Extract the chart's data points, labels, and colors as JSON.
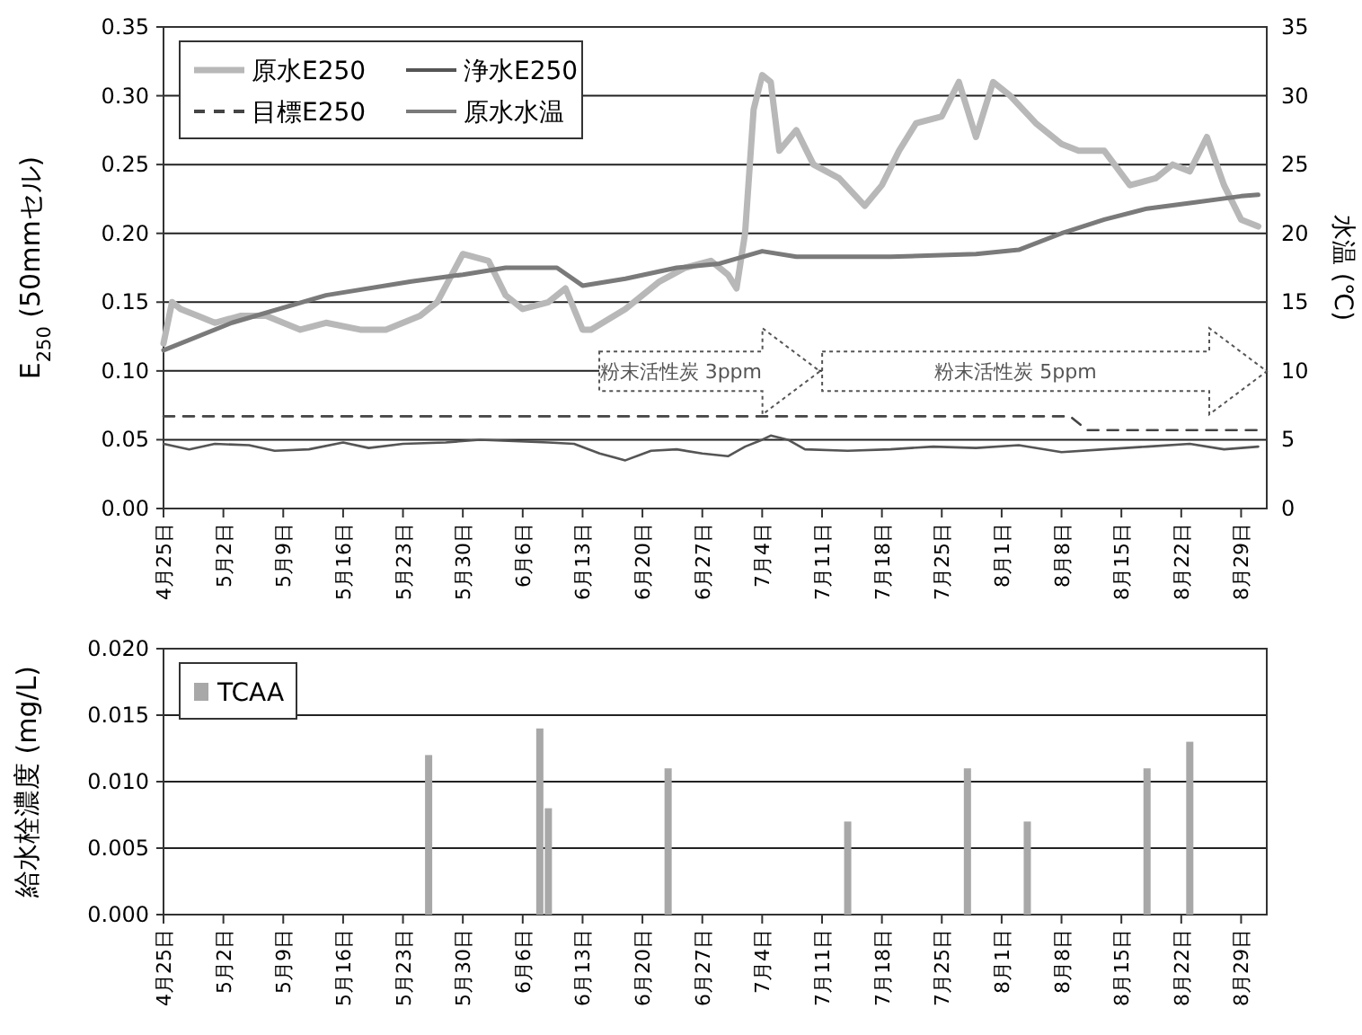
{
  "chart_data": [
    {
      "type": "line",
      "ylabel": "E$_{250}$ (50mmセル)",
      "y2label": "水温 (℃)",
      "xlim": [
        "--04-25",
        "--09-01"
      ],
      "xticks": [
        {
          "value": "--04-25",
          "label": "4月25日"
        },
        {
          "value": "--05-02",
          "label": "5月2日"
        },
        {
          "value": "--05-09",
          "label": "5月9日"
        },
        {
          "value": "--05-16",
          "label": "5月16日"
        },
        {
          "value": "--05-23",
          "label": "5月23日"
        },
        {
          "value": "--05-30",
          "label": "5月30日"
        },
        {
          "value": "--06-06",
          "label": "6月6日"
        },
        {
          "value": "--06-13",
          "label": "6月13日"
        },
        {
          "value": "--06-20",
          "label": "6月20日"
        },
        {
          "value": "--06-27",
          "label": "6月27日"
        },
        {
          "value": "--07-04",
          "label": "7月4日"
        },
        {
          "value": "--07-11",
          "label": "7月11日"
        },
        {
          "value": "--07-18",
          "label": "7月18日"
        },
        {
          "value": "--07-25",
          "label": "7月25日"
        },
        {
          "value": "--08-01",
          "label": "8月1日"
        },
        {
          "value": "--08-08",
          "label": "8月8日"
        },
        {
          "value": "--08-15",
          "label": "8月15日"
        },
        {
          "value": "--08-22",
          "label": "8月22日"
        },
        {
          "value": "--08-29",
          "label": "8月29日"
        }
      ],
      "ylim": [
        0,
        0.35
      ],
      "yticks": [
        {
          "value": 0,
          "label": "0.00"
        },
        {
          "value": 0.05,
          "label": "0.05"
        },
        {
          "value": 0.1,
          "label": "0.10"
        },
        {
          "value": 0.15,
          "label": "0.15"
        },
        {
          "value": 0.2,
          "label": "0.20"
        },
        {
          "value": 0.25,
          "label": "0.25"
        },
        {
          "value": 0.3,
          "label": "0.30"
        },
        {
          "value": 0.35,
          "label": "0.35"
        }
      ],
      "y2lim": [
        0,
        35
      ],
      "y2ticks": [
        0,
        5,
        10,
        15,
        20,
        25,
        30,
        35
      ],
      "grid": "y",
      "legend": "top left",
      "annotations": [
        "粉末活性炭 3ppm",
        "粉末活性炭 5ppm"
      ],
      "series": [
        {
          "name": "原水E250",
          "color": "#b8b8b8",
          "x": [
            "--04-25",
            "--04-26",
            "--04-27",
            "--04-29",
            "--05-01",
            "--05-04",
            "--05-07",
            "--05-11",
            "--05-14",
            "--05-18",
            "--05-21",
            "--05-25",
            "--05-27",
            "--05-30",
            "--06-02",
            "--06-04",
            "--06-06",
            "--06-09",
            "--06-11",
            "--06-13",
            "--06-14",
            "--06-18",
            "--06-22",
            "--06-25",
            "--06-28",
            "--06-30",
            "--07-01",
            "--07-02",
            "--07-03",
            "--07-04",
            "--07-05",
            "--07-06",
            "--07-08",
            "--07-10",
            "--07-13",
            "--07-16",
            "--07-18",
            "--07-20",
            "--07-22",
            "--07-25",
            "--07-27",
            "--07-29",
            "--07-31",
            "--08-02",
            "--08-05",
            "--08-08",
            "--08-10",
            "--08-13",
            "--08-16",
            "--08-19",
            "--08-21",
            "--08-23",
            "--08-25",
            "--08-27",
            "--08-29",
            "--08-31"
          ],
          "values": [
            0.12,
            0.15,
            0.145,
            0.14,
            0.135,
            0.14,
            0.14,
            0.13,
            0.135,
            0.13,
            0.13,
            0.14,
            0.15,
            0.185,
            0.18,
            0.155,
            0.145,
            0.15,
            0.16,
            0.13,
            0.13,
            0.145,
            0.165,
            0.175,
            0.18,
            0.17,
            0.16,
            0.2,
            0.29,
            0.315,
            0.31,
            0.26,
            0.275,
            0.25,
            0.24,
            0.22,
            0.235,
            0.26,
            0.28,
            0.285,
            0.31,
            0.27,
            0.31,
            0.3,
            0.28,
            0.265,
            0.26,
            0.26,
            0.235,
            0.24,
            0.25,
            0.245,
            0.27,
            0.235,
            0.21,
            0.205
          ]
        },
        {
          "name": "浄水E250",
          "color": "#555555",
          "x": [
            "--04-25",
            "--04-28",
            "--05-01",
            "--05-05",
            "--05-08",
            "--05-12",
            "--05-16",
            "--05-19",
            "--05-23",
            "--05-28",
            "--06-01",
            "--06-05",
            "--06-09",
            "--06-12",
            "--06-15",
            "--06-18",
            "--06-21",
            "--06-24",
            "--06-27",
            "--06-30",
            "--07-02",
            "--07-04",
            "--07-05",
            "--07-07",
            "--07-09",
            "--07-14",
            "--07-19",
            "--07-24",
            "--07-29",
            "--08-03",
            "--08-08",
            "--08-13",
            "--08-18",
            "--08-23",
            "--08-27",
            "--08-31"
          ],
          "values": [
            0.047,
            0.043,
            0.047,
            0.046,
            0.042,
            0.043,
            0.048,
            0.044,
            0.047,
            0.048,
            0.05,
            0.049,
            0.048,
            0.047,
            0.04,
            0.035,
            0.042,
            0.043,
            0.04,
            0.038,
            0.045,
            0.05,
            0.053,
            0.05,
            0.043,
            0.042,
            0.043,
            0.045,
            0.044,
            0.046,
            0.041,
            0.043,
            0.045,
            0.047,
            0.043,
            0.045
          ]
        },
        {
          "name": "目標E250",
          "color": "#444444",
          "line_style": "dashed",
          "x": [
            "--04-25",
            "--08-09",
            "--08-11",
            "--08-31"
          ],
          "values": [
            0.067,
            0.067,
            0.057,
            0.057
          ]
        },
        {
          "name": "原水水温",
          "color": "#7a7a7a",
          "axis": "y2",
          "x": [
            "--04-25",
            "--05-03",
            "--05-14",
            "--05-24",
            "--05-30",
            "--06-04",
            "--06-10",
            "--06-13",
            "--06-18",
            "--06-24",
            "--06-29",
            "--07-04",
            "--07-08",
            "--07-19",
            "--07-29",
            "--08-03",
            "--08-08",
            "--08-13",
            "--08-18",
            "--08-23",
            "--08-29",
            "--08-31"
          ],
          "values": [
            11.5,
            13.5,
            15.5,
            16.5,
            17,
            17.5,
            17.5,
            16.2,
            16.7,
            17.5,
            17.8,
            18.7,
            18.3,
            18.3,
            18.5,
            18.8,
            20,
            21,
            21.8,
            22.2,
            22.7,
            22.8
          ]
        }
      ]
    },
    {
      "type": "bar",
      "ylabel": "給水栓濃度 (mg/L)",
      "xlim": [
        "--04-25",
        "--09-01"
      ],
      "xticks": [
        {
          "value": "--04-25",
          "label": "4月25日"
        },
        {
          "value": "--05-02",
          "label": "5月2日"
        },
        {
          "value": "--05-09",
          "label": "5月9日"
        },
        {
          "value": "--05-16",
          "label": "5月16日"
        },
        {
          "value": "--05-23",
          "label": "5月23日"
        },
        {
          "value": "--05-30",
          "label": "5月30日"
        },
        {
          "value": "--06-06",
          "label": "6月6日"
        },
        {
          "value": "--06-13",
          "label": "6月13日"
        },
        {
          "value": "--06-20",
          "label": "6月20日"
        },
        {
          "value": "--06-27",
          "label": "6月27日"
        },
        {
          "value": "--07-04",
          "label": "7月4日"
        },
        {
          "value": "--07-11",
          "label": "7月11日"
        },
        {
          "value": "--07-18",
          "label": "7月18日"
        },
        {
          "value": "--07-25",
          "label": "7月25日"
        },
        {
          "value": "--08-01",
          "label": "8月1日"
        },
        {
          "value": "--08-08",
          "label": "8月8日"
        },
        {
          "value": "--08-15",
          "label": "8月15日"
        },
        {
          "value": "--08-22",
          "label": "8月22日"
        },
        {
          "value": "--08-29",
          "label": "8月29日"
        }
      ],
      "ylim": [
        0,
        0.02
      ],
      "yticks": [
        {
          "value": 0,
          "label": "0.000"
        },
        {
          "value": 0.005,
          "label": "0.005"
        },
        {
          "value": 0.01,
          "label": "0.010"
        },
        {
          "value": 0.015,
          "label": "0.015"
        },
        {
          "value": 0.02,
          "label": "0.020"
        }
      ],
      "grid": "y",
      "legend": "top left",
      "series": [
        {
          "name": "TCAA",
          "color": "#a8a8a8",
          "x": [
            "--05-26",
            "--06-08",
            "--06-09",
            "--06-23",
            "--07-14",
            "--07-28",
            "--08-04",
            "--08-18",
            "--08-23"
          ],
          "values": [
            0.012,
            0.014,
            0.008,
            0.011,
            0.007,
            0.011,
            0.007,
            0.011,
            0.013
          ]
        }
      ]
    }
  ]
}
